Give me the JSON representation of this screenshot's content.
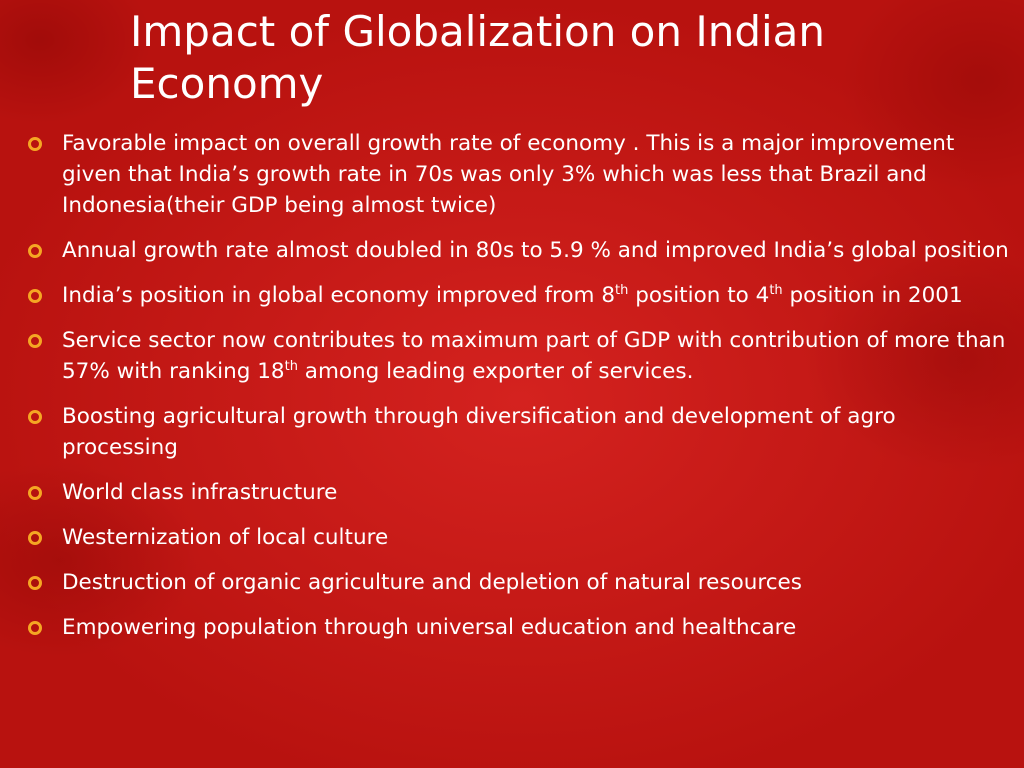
{
  "title": "Impact of Globalization on Indian Economy",
  "bullets": [
    [
      "Favorable impact on overall growth rate of economy . This is a major improvement given that India’s growth rate in 70s was only 3% which was less that Brazil and Indonesia(their GDP being almost twice)"
    ],
    [
      "Annual growth rate almost doubled in 80s to 5.9 % and improved India’s global position"
    ],
    [
      "India’s position in global economy improved from 8",
      {
        "sup": "th"
      },
      " position to 4",
      {
        "sup": "th"
      },
      " position in 2001"
    ],
    [
      "Service sector now contributes to maximum part of GDP with contribution of more than 57% with ranking 18",
      {
        "sup": "th"
      },
      " among leading exporter of services."
    ],
    [
      "Boosting agricultural growth through diversification and development of agro processing"
    ],
    [
      "World class infrastructure"
    ],
    [
      "Westernization of local culture"
    ],
    [
      "Destruction of organic agriculture and depletion of natural resources"
    ],
    [
      "Empowering  population through universal education and healthcare"
    ]
  ]
}
